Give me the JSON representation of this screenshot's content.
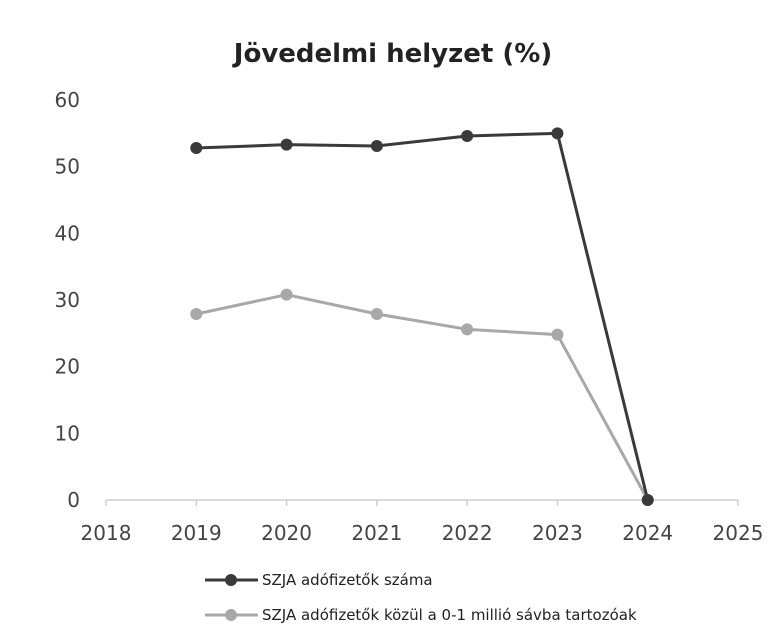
{
  "chart_data": {
    "type": "line",
    "title": "Jövedelmi helyzet (%)",
    "xlabel": "",
    "ylabel": "",
    "xlim": [
      2018,
      2025
    ],
    "ylim": [
      0,
      60
    ],
    "x_ticks": [
      "2018",
      "2019",
      "2020",
      "2021",
      "2022",
      "2023",
      "2024",
      "2025"
    ],
    "y_ticks": [
      "0",
      "10",
      "20",
      "30",
      "40",
      "50",
      "60"
    ],
    "grid": false,
    "legend_position": "bottom",
    "series": [
      {
        "name": "SZJA adófizetők száma",
        "color": "#3a3a3a",
        "x": [
          2019,
          2020,
          2021,
          2022,
          2023,
          2024
        ],
        "y": [
          52.8,
          53.3,
          53.1,
          54.6,
          55.0,
          0
        ]
      },
      {
        "name": "SZJA adófizetők közül a 0-1 millió sávba tartozóak",
        "color": "#a8a8a8",
        "x": [
          2019,
          2020,
          2021,
          2022,
          2023,
          2024
        ],
        "y": [
          27.9,
          30.8,
          27.9,
          25.6,
          24.8,
          0
        ]
      }
    ]
  }
}
